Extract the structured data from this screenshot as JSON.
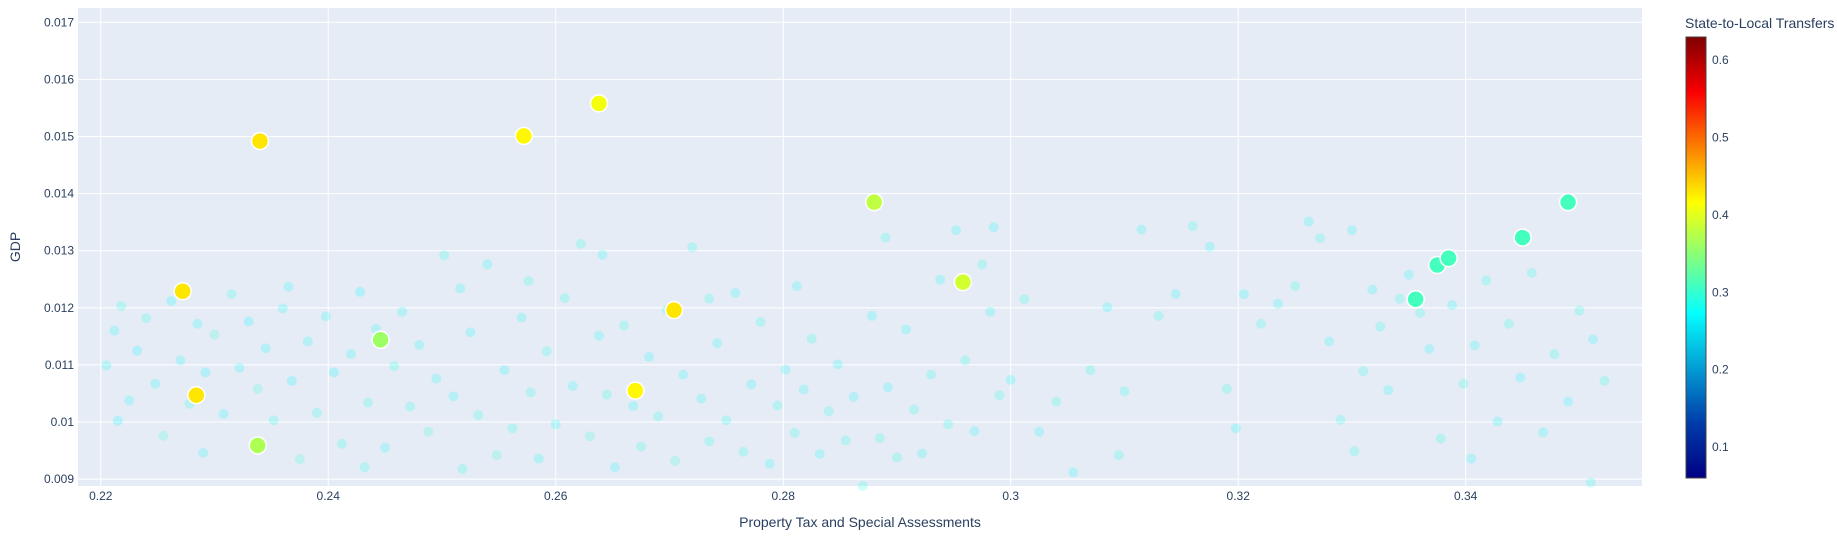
{
  "chart_data": {
    "type": "scatter",
    "title": "",
    "xlabel": "Property Tax and Special Assessments",
    "ylabel": "GDP",
    "xlim": [
      0.218,
      0.3555
    ],
    "ylim": [
      0.00888,
      0.01725
    ],
    "x_ticks": [
      0.22,
      0.24,
      0.26,
      0.28,
      0.3,
      0.32,
      0.34
    ],
    "x_tick_labels": [
      "0.22",
      "0.24",
      "0.26",
      "0.28",
      "0.3",
      "0.32",
      "0.34"
    ],
    "y_ticks": [
      0.009,
      0.01,
      0.011,
      0.012,
      0.013,
      0.014,
      0.015,
      0.016,
      0.017
    ],
    "y_tick_labels": [
      "0.009",
      "0.01",
      "0.011",
      "0.012",
      "0.013",
      "0.014",
      "0.015",
      "0.016",
      "0.017"
    ],
    "grid": true,
    "colorscale": "Jet",
    "colorbar": {
      "title": "State-to-Local Transfers",
      "range": [
        0.06,
        0.63
      ],
      "ticks": [
        0.1,
        0.2,
        0.3,
        0.4,
        0.5,
        0.6
      ],
      "tick_labels": [
        "0.1",
        "0.2",
        "0.3",
        "0.4",
        "0.5",
        "0.6"
      ]
    },
    "highlighted_points": [
      {
        "x": 0.234,
        "y": 0.01492,
        "c": 0.43
      },
      {
        "x": 0.2572,
        "y": 0.01501,
        "c": 0.42
      },
      {
        "x": 0.2638,
        "y": 0.01558,
        "c": 0.41
      },
      {
        "x": 0.2272,
        "y": 0.01229,
        "c": 0.43
      },
      {
        "x": 0.2284,
        "y": 0.01047,
        "c": 0.43
      },
      {
        "x": 0.2338,
        "y": 0.00959,
        "c": 0.37
      },
      {
        "x": 0.2446,
        "y": 0.01144,
        "c": 0.36
      },
      {
        "x": 0.267,
        "y": 0.01055,
        "c": 0.42
      },
      {
        "x": 0.2704,
        "y": 0.01196,
        "c": 0.43
      },
      {
        "x": 0.288,
        "y": 0.01385,
        "c": 0.38
      },
      {
        "x": 0.2958,
        "y": 0.01245,
        "c": 0.39
      },
      {
        "x": 0.3356,
        "y": 0.01215,
        "c": 0.31
      },
      {
        "x": 0.3375,
        "y": 0.01275,
        "c": 0.31
      },
      {
        "x": 0.3385,
        "y": 0.01287,
        "c": 0.31
      },
      {
        "x": 0.345,
        "y": 0.01323,
        "c": 0.31
      },
      {
        "x": 0.349,
        "y": 0.01385,
        "c": 0.31
      }
    ],
    "background_points": [
      [
        0.2205,
        0.01099,
        0.28
      ],
      [
        0.2212,
        0.0116,
        0.28
      ],
      [
        0.2218,
        0.01203,
        0.29
      ],
      [
        0.2225,
        0.01038,
        0.28
      ],
      [
        0.2232,
        0.01125,
        0.27
      ],
      [
        0.224,
        0.01182,
        0.29
      ],
      [
        0.2248,
        0.01067,
        0.28
      ],
      [
        0.2255,
        0.00976,
        0.3
      ],
      [
        0.2262,
        0.01212,
        0.27
      ],
      [
        0.227,
        0.01108,
        0.28
      ],
      [
        0.2278,
        0.01032,
        0.29
      ],
      [
        0.2285,
        0.01172,
        0.28
      ],
      [
        0.2292,
        0.01087,
        0.27
      ],
      [
        0.23,
        0.01153,
        0.3
      ],
      [
        0.2308,
        0.01014,
        0.28
      ],
      [
        0.2315,
        0.01224,
        0.29
      ],
      [
        0.2322,
        0.01095,
        0.28
      ],
      [
        0.233,
        0.01176,
        0.27
      ],
      [
        0.2338,
        0.01058,
        0.3
      ],
      [
        0.2345,
        0.01129,
        0.28
      ],
      [
        0.2352,
        0.01003,
        0.29
      ],
      [
        0.236,
        0.01199,
        0.28
      ],
      [
        0.2368,
        0.01072,
        0.27
      ],
      [
        0.2375,
        0.00935,
        0.3
      ],
      [
        0.2382,
        0.01141,
        0.28
      ],
      [
        0.239,
        0.01016,
        0.29
      ],
      [
        0.2398,
        0.01185,
        0.28
      ],
      [
        0.2405,
        0.01087,
        0.27
      ],
      [
        0.2412,
        0.00962,
        0.29
      ],
      [
        0.242,
        0.01119,
        0.28
      ],
      [
        0.2428,
        0.01228,
        0.27
      ],
      [
        0.2435,
        0.01034,
        0.29
      ],
      [
        0.2442,
        0.01163,
        0.28
      ],
      [
        0.245,
        0.00955,
        0.28
      ],
      [
        0.2458,
        0.01098,
        0.29
      ],
      [
        0.2465,
        0.01193,
        0.28
      ],
      [
        0.2472,
        0.01027,
        0.29
      ],
      [
        0.248,
        0.01135,
        0.28
      ],
      [
        0.2488,
        0.00983,
        0.3
      ],
      [
        0.2495,
        0.01076,
        0.28
      ],
      [
        0.2502,
        0.01292,
        0.29
      ],
      [
        0.251,
        0.01045,
        0.28
      ],
      [
        0.2518,
        0.00918,
        0.29
      ],
      [
        0.2525,
        0.01157,
        0.28
      ],
      [
        0.2532,
        0.01012,
        0.29
      ],
      [
        0.254,
        0.01276,
        0.28
      ],
      [
        0.2548,
        0.00942,
        0.3
      ],
      [
        0.2555,
        0.01091,
        0.28
      ],
      [
        0.2562,
        0.00989,
        0.29
      ],
      [
        0.257,
        0.01183,
        0.28
      ],
      [
        0.2578,
        0.01052,
        0.29
      ],
      [
        0.2585,
        0.00936,
        0.28
      ],
      [
        0.2592,
        0.01124,
        0.29
      ],
      [
        0.26,
        0.00996,
        0.28
      ],
      [
        0.2608,
        0.01217,
        0.29
      ],
      [
        0.2615,
        0.01063,
        0.28
      ],
      [
        0.2622,
        0.01312,
        0.29
      ],
      [
        0.263,
        0.00975,
        0.3
      ],
      [
        0.2638,
        0.01151,
        0.28
      ],
      [
        0.2645,
        0.01048,
        0.29
      ],
      [
        0.2652,
        0.00921,
        0.28
      ],
      [
        0.266,
        0.01169,
        0.29
      ],
      [
        0.2668,
        0.01028,
        0.28
      ],
      [
        0.2675,
        0.00957,
        0.29
      ],
      [
        0.2682,
        0.01114,
        0.28
      ],
      [
        0.269,
        0.0101,
        0.29
      ],
      [
        0.2698,
        0.01196,
        0.28
      ],
      [
        0.2705,
        0.00932,
        0.3
      ],
      [
        0.2712,
        0.01083,
        0.28
      ],
      [
        0.272,
        0.01306,
        0.29
      ],
      [
        0.2728,
        0.01041,
        0.28
      ],
      [
        0.2735,
        0.00966,
        0.29
      ],
      [
        0.2742,
        0.01138,
        0.28
      ],
      [
        0.275,
        0.01003,
        0.29
      ],
      [
        0.2758,
        0.01226,
        0.28
      ],
      [
        0.2765,
        0.00948,
        0.29
      ],
      [
        0.2772,
        0.01066,
        0.28
      ],
      [
        0.278,
        0.01175,
        0.29
      ],
      [
        0.2788,
        0.00927,
        0.28
      ],
      [
        0.2795,
        0.01029,
        0.29
      ],
      [
        0.2802,
        0.01092,
        0.28
      ],
      [
        0.281,
        0.00981,
        0.29
      ],
      [
        0.2818,
        0.01057,
        0.28
      ],
      [
        0.2825,
        0.01146,
        0.29
      ],
      [
        0.2832,
        0.00944,
        0.28
      ],
      [
        0.284,
        0.01019,
        0.29
      ],
      [
        0.2848,
        0.01101,
        0.28
      ],
      [
        0.2855,
        0.00968,
        0.29
      ],
      [
        0.2862,
        0.01044,
        0.28
      ],
      [
        0.287,
        0.00888,
        0.29
      ],
      [
        0.2878,
        0.01186,
        0.28
      ],
      [
        0.2885,
        0.00972,
        0.29
      ],
      [
        0.2892,
        0.01061,
        0.28
      ],
      [
        0.29,
        0.00938,
        0.29
      ],
      [
        0.2908,
        0.01162,
        0.28
      ],
      [
        0.2915,
        0.01022,
        0.29
      ],
      [
        0.2922,
        0.00945,
        0.28
      ],
      [
        0.293,
        0.01083,
        0.29
      ],
      [
        0.2938,
        0.01249,
        0.28
      ],
      [
        0.2945,
        0.00996,
        0.29
      ],
      [
        0.2952,
        0.01336,
        0.28
      ],
      [
        0.296,
        0.01108,
        0.29
      ],
      [
        0.2968,
        0.00984,
        0.28
      ],
      [
        0.2975,
        0.01276,
        0.29
      ],
      [
        0.2982,
        0.01193,
        0.28
      ],
      [
        0.299,
        0.01047,
        0.29
      ],
      [
        0.3,
        0.01074,
        0.28
      ],
      [
        0.3012,
        0.01215,
        0.29
      ],
      [
        0.3025,
        0.00983,
        0.28
      ],
      [
        0.304,
        0.01036,
        0.29
      ],
      [
        0.3055,
        0.00912,
        0.28
      ],
      [
        0.307,
        0.01091,
        0.29
      ],
      [
        0.3085,
        0.01201,
        0.28
      ],
      [
        0.31,
        0.01054,
        0.29
      ],
      [
        0.3115,
        0.01337,
        0.28
      ],
      [
        0.313,
        0.01186,
        0.29
      ],
      [
        0.3145,
        0.01224,
        0.28
      ],
      [
        0.316,
        0.01343,
        0.29
      ],
      [
        0.3175,
        0.01307,
        0.28
      ],
      [
        0.319,
        0.01058,
        0.29
      ],
      [
        0.3205,
        0.01224,
        0.28
      ],
      [
        0.322,
        0.01172,
        0.29
      ],
      [
        0.3235,
        0.01207,
        0.28
      ],
      [
        0.325,
        0.01238,
        0.29
      ],
      [
        0.3262,
        0.01351,
        0.28
      ],
      [
        0.3272,
        0.01322,
        0.29
      ],
      [
        0.328,
        0.01141,
        0.28
      ],
      [
        0.329,
        0.01004,
        0.29
      ],
      [
        0.33,
        0.01336,
        0.28
      ],
      [
        0.331,
        0.01089,
        0.29
      ],
      [
        0.3318,
        0.01232,
        0.28
      ],
      [
        0.3325,
        0.01167,
        0.29
      ],
      [
        0.3332,
        0.01056,
        0.28
      ],
      [
        0.3342,
        0.01216,
        0.29
      ],
      [
        0.335,
        0.01258,
        0.28
      ],
      [
        0.336,
        0.01191,
        0.29
      ],
      [
        0.3368,
        0.01128,
        0.28
      ],
      [
        0.3378,
        0.00971,
        0.29
      ],
      [
        0.3388,
        0.01205,
        0.28
      ],
      [
        0.3398,
        0.01067,
        0.29
      ],
      [
        0.3408,
        0.01134,
        0.28
      ],
      [
        0.3418,
        0.01248,
        0.29
      ],
      [
        0.3428,
        0.01001,
        0.28
      ],
      [
        0.3438,
        0.01172,
        0.29
      ],
      [
        0.3448,
        0.01078,
        0.28
      ],
      [
        0.3458,
        0.01261,
        0.29
      ],
      [
        0.3468,
        0.00982,
        0.28
      ],
      [
        0.3478,
        0.01119,
        0.29
      ],
      [
        0.349,
        0.01036,
        0.28
      ],
      [
        0.35,
        0.01195,
        0.29
      ],
      [
        0.3512,
        0.01145,
        0.28
      ],
      [
        0.3522,
        0.01072,
        0.29
      ],
      [
        0.2215,
        0.01002,
        0.27
      ],
      [
        0.229,
        0.00946,
        0.28
      ],
      [
        0.2365,
        0.01237,
        0.28
      ],
      [
        0.2432,
        0.00921,
        0.29
      ],
      [
        0.2516,
        0.01234,
        0.28
      ],
      [
        0.2576,
        0.01247,
        0.29
      ],
      [
        0.2641,
        0.01293,
        0.28
      ],
      [
        0.2735,
        0.01216,
        0.29
      ],
      [
        0.2812,
        0.01238,
        0.28
      ],
      [
        0.289,
        0.01323,
        0.29
      ],
      [
        0.2985,
        0.01341,
        0.28
      ],
      [
        0.3095,
        0.00942,
        0.29
      ],
      [
        0.3198,
        0.00989,
        0.28
      ],
      [
        0.3302,
        0.00949,
        0.29
      ],
      [
        0.3405,
        0.00936,
        0.28
      ],
      [
        0.351,
        0.00894,
        0.29
      ]
    ]
  }
}
